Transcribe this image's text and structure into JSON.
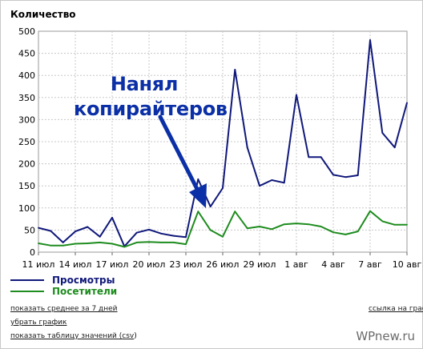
{
  "chart_data": {
    "type": "line",
    "title": "Количество",
    "ylim": [
      0,
      500
    ],
    "yticks": [
      "0",
      "50",
      "100",
      "150",
      "200",
      "250",
      "300",
      "350",
      "400",
      "450",
      "500"
    ],
    "xticks": [
      "11 июл",
      "14 июл",
      "17 июл",
      "20 июл",
      "23 июл",
      "26 июл",
      "29 июл",
      "1 авг",
      "4 авг",
      "7 авг",
      "10 авг"
    ],
    "grid": true,
    "legend_position": "bottom-left",
    "series": [
      {
        "name": "Просмотры",
        "color": "#10187a",
        "values": [
          55,
          48,
          22,
          47,
          57,
          35,
          78,
          13,
          44,
          51,
          42,
          37,
          34,
          165,
          103,
          145,
          413,
          237,
          150,
          163,
          157,
          356,
          215,
          215,
          175,
          170,
          174,
          480,
          270,
          237,
          338
        ]
      },
      {
        "name": "Посетители",
        "color": "#1e8c1e",
        "values": [
          20,
          15,
          15,
          19,
          20,
          22,
          19,
          12,
          22,
          23,
          22,
          22,
          18,
          92,
          50,
          35,
          92,
          54,
          58,
          52,
          63,
          65,
          63,
          58,
          45,
          40,
          47,
          93,
          70,
          62,
          62
        ]
      }
    ]
  },
  "annotation": {
    "line1": "Нанял",
    "line2": "копирайтеров"
  },
  "links": {
    "avg7": "показать среднее за 7 дней",
    "remove": "убрать график",
    "table_prefix": "показать таблицу значений (",
    "table_csv": "csv",
    "table_suffix": ")",
    "link_chart": "ссылка на графи"
  },
  "watermark": "WPnew.ru",
  "colors": {
    "annotation": "#0b2fa6",
    "grid": "#c8c8c8"
  }
}
